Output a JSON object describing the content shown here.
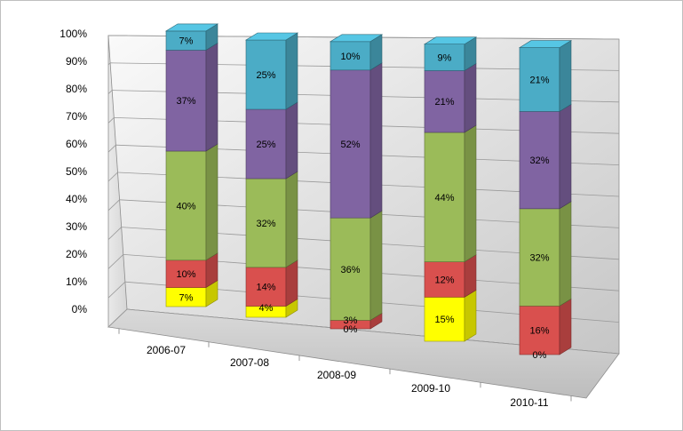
{
  "chart_data": {
    "type": "bar",
    "stacked": true,
    "percent_stacked": true,
    "three_d": true,
    "title": "",
    "xlabel": "",
    "ylabel": "",
    "ylim": [
      0,
      100
    ],
    "y_ticks": [
      "0%",
      "10%",
      "20%",
      "30%",
      "40%",
      "50%",
      "60%",
      "70%",
      "80%",
      "90%",
      "100%"
    ],
    "categories": [
      "2006-07",
      "2007-08",
      "2008-09",
      "2009-10",
      "2010-11"
    ],
    "series": [
      {
        "color": "#ffff00",
        "values": [
          7,
          4,
          0,
          15,
          0
        ],
        "labels": [
          "7%",
          "4%",
          "0%",
          "15%",
          "0%"
        ]
      },
      {
        "color": "#d9504e",
        "values": [
          10,
          14,
          3,
          12,
          16
        ],
        "labels": [
          "10%",
          "14%",
          "3%",
          "12%",
          "16%"
        ]
      },
      {
        "color": "#9bbb59",
        "values": [
          40,
          32,
          36,
          44,
          32
        ],
        "labels": [
          "40%",
          "32%",
          "36%",
          "44%",
          "32%"
        ]
      },
      {
        "color": "#8064a2",
        "values": [
          37,
          25,
          52,
          21,
          32
        ],
        "labels": [
          "37%",
          "25%",
          "52%",
          "21%",
          "32%"
        ]
      },
      {
        "color": "#4bacc6",
        "values": [
          7,
          25,
          10,
          9,
          21
        ],
        "labels": [
          "7%",
          "25%",
          "10%",
          "9%",
          "21%"
        ]
      }
    ],
    "grid": true,
    "legend": "none"
  }
}
